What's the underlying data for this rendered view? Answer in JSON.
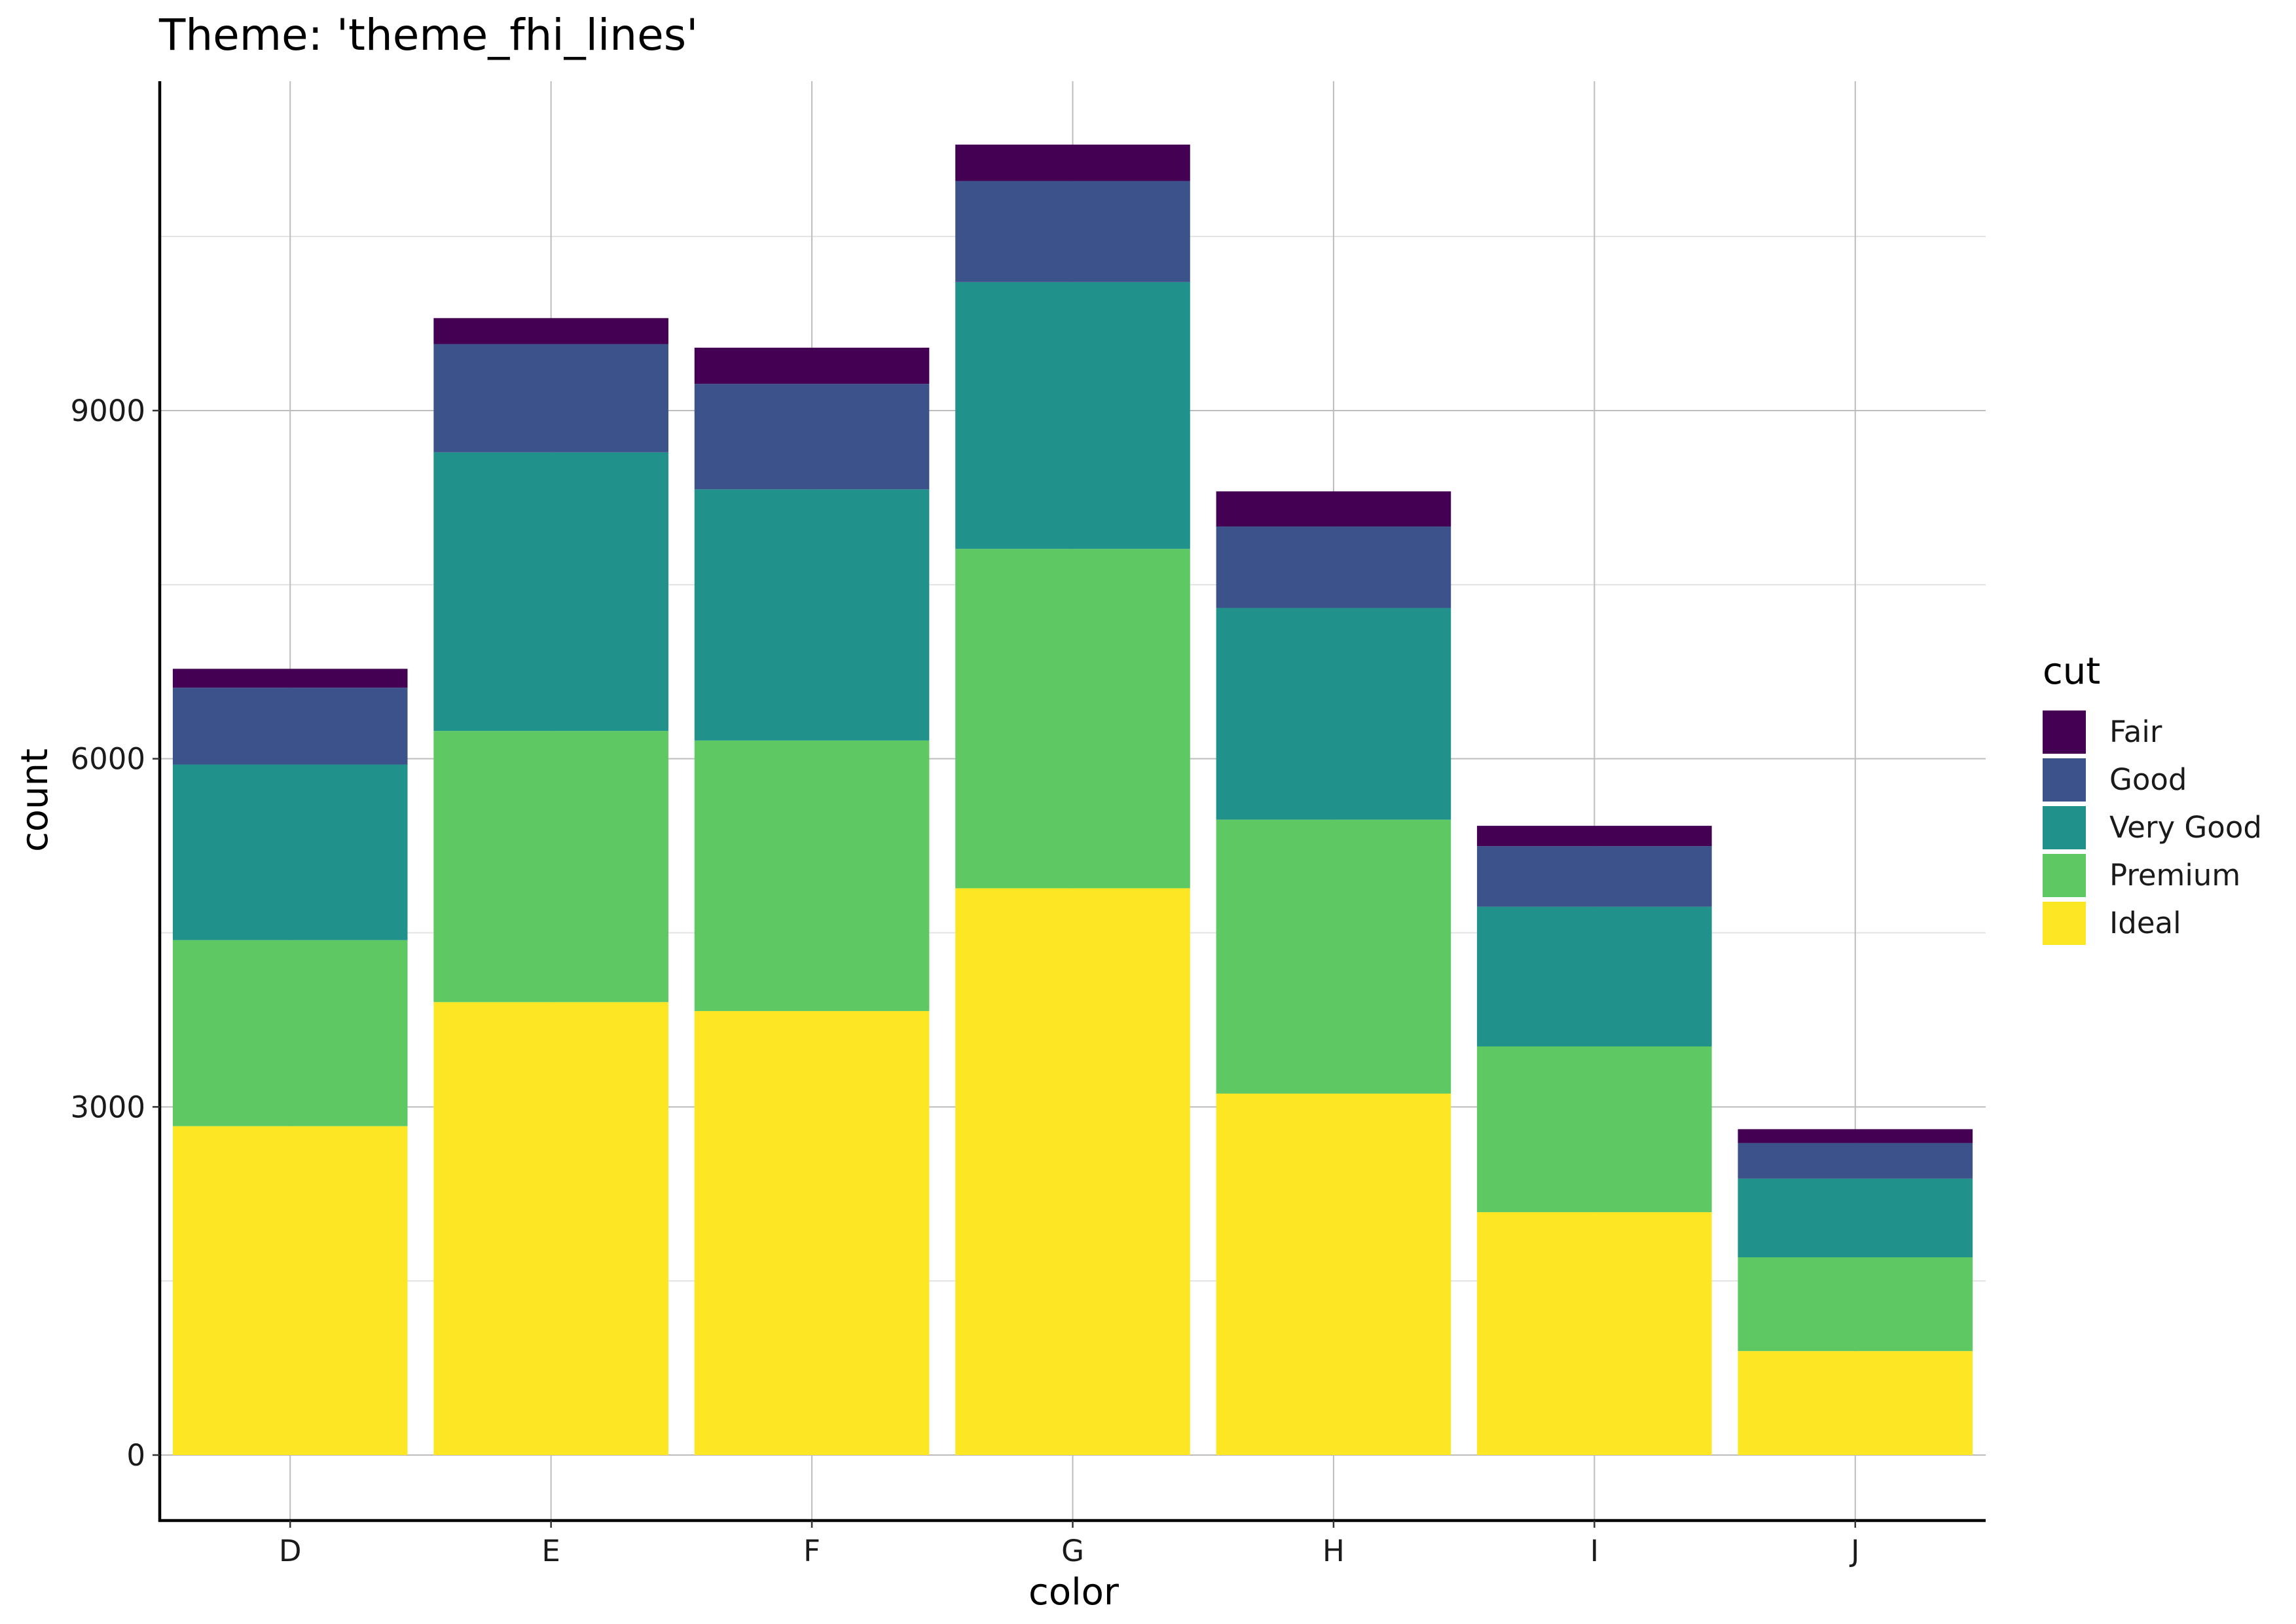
{
  "chart_data": {
    "type": "bar",
    "stacked": true,
    "title": "Theme: 'theme_fhi_lines'",
    "xlabel": "color",
    "ylabel": "count",
    "categories": [
      "D",
      "E",
      "F",
      "G",
      "H",
      "I",
      "J"
    ],
    "ylim": [
      -700,
      11800
    ],
    "yticks": [
      0,
      3000,
      6000,
      9000
    ],
    "yticks_minor": [
      1500,
      4500,
      7500,
      10500
    ],
    "grid": true,
    "legend": {
      "title": "cut",
      "position": "right",
      "entries": [
        "Fair",
        "Good",
        "Very Good",
        "Premium",
        "Ideal"
      ]
    },
    "series": [
      {
        "name": "Ideal",
        "color": "#fde725",
        "values": [
          2834,
          3903,
          3826,
          4884,
          3115,
          2093,
          896
        ]
      },
      {
        "name": "Premium",
        "color": "#5ec962",
        "values": [
          1603,
          2337,
          2331,
          2924,
          2360,
          1428,
          808
        ]
      },
      {
        "name": "Very Good",
        "color": "#21918c",
        "values": [
          1513,
          2400,
          2164,
          2299,
          1824,
          1204,
          678
        ]
      },
      {
        "name": "Good",
        "color": "#3b528b",
        "values": [
          662,
          933,
          909,
          871,
          702,
          522,
          307
        ]
      },
      {
        "name": "Fair",
        "color": "#440154",
        "values": [
          163,
          224,
          312,
          314,
          303,
          175,
          119
        ]
      }
    ]
  }
}
